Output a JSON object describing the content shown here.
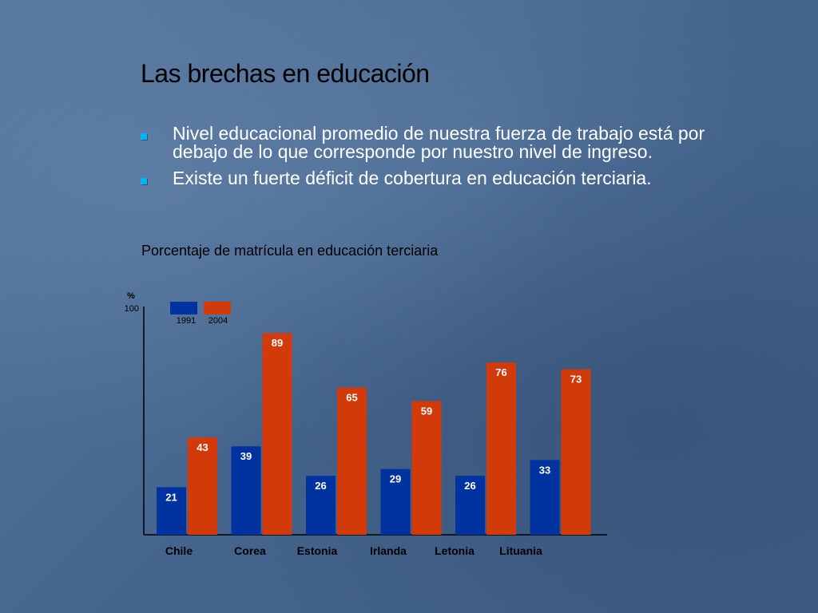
{
  "slide": {
    "title": "Las brechas en educación",
    "bullets": [
      "Nivel educacional promedio de nuestra fuerza de trabajo está por debajo de lo que corresponde por nuestro nivel de ingreso.",
      "Existe un fuerte déficit de cobertura en educación terciaria."
    ]
  },
  "colors": {
    "series_1991": "#0033a0",
    "series_2004": "#d23a0a",
    "bullet": "#00b4ff"
  },
  "chart_data": {
    "type": "bar",
    "title": "Porcentaje de matrícula en educación terciaria",
    "ylabel": "%",
    "ylim": [
      0,
      100
    ],
    "yticks": [
      100
    ],
    "legend": "top-left",
    "grid": false,
    "categories": [
      "Chile",
      "Corea",
      "Estonia",
      "Irlanda",
      "Letonia",
      "Lituania"
    ],
    "series": [
      {
        "name": "1991",
        "values": [
          21,
          39,
          26,
          29,
          26,
          33
        ]
      },
      {
        "name": "2004",
        "values": [
          43,
          89,
          65,
          59,
          76,
          73
        ]
      }
    ]
  }
}
